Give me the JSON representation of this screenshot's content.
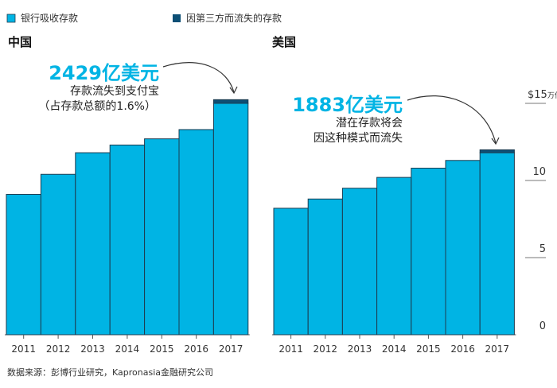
{
  "legend": [
    {
      "label": "银行吸收存款",
      "color": "#00b4e4"
    },
    {
      "label": "因第三方而流失的存款",
      "color": "#0d4f75"
    }
  ],
  "source": "数据来源：彭博行业研究，Kapronasia金融研究公司",
  "chart_data": [
    {
      "type": "bar",
      "stacked": true,
      "title": "中国",
      "categories": [
        "2011",
        "2012",
        "2013",
        "2014",
        "2015",
        "2016",
        "2017"
      ],
      "series": [
        {
          "name": "银行吸收存款",
          "values": [
            9.1,
            10.4,
            11.8,
            12.3,
            12.7,
            13.3,
            15.0
          ]
        },
        {
          "name": "因第三方而流失的存款",
          "values": [
            0,
            0,
            0,
            0,
            0,
            0,
            0.24
          ]
        }
      ],
      "annotation": {
        "value": "2429亿美元",
        "line1": "存款流失到支付宝",
        "line2": "（占存款总额的1.6%）"
      },
      "ylim": [
        0,
        15
      ]
    },
    {
      "type": "bar",
      "stacked": true,
      "title": "美国",
      "categories": [
        "2011",
        "2012",
        "2013",
        "2014",
        "2015",
        "2016",
        "2017"
      ],
      "series": [
        {
          "name": "银行吸收存款",
          "values": [
            8.2,
            8.8,
            9.5,
            10.2,
            10.8,
            11.3,
            11.8
          ]
        },
        {
          "name": "因第三方而流失的存款",
          "values": [
            0,
            0,
            0,
            0,
            0,
            0,
            0.19
          ]
        }
      ],
      "annotation": {
        "value": "1883亿美元",
        "line1": "潜在存款将会",
        "line2": "因这种模式而流失"
      },
      "ylim": [
        0,
        15
      ],
      "yticks": [
        {
          "value": 0,
          "label": "0"
        },
        {
          "value": 5,
          "label": "5"
        },
        {
          "value": 10,
          "label": "10"
        },
        {
          "value": 15,
          "label": "$15",
          "unit": "万亿"
        }
      ]
    }
  ]
}
